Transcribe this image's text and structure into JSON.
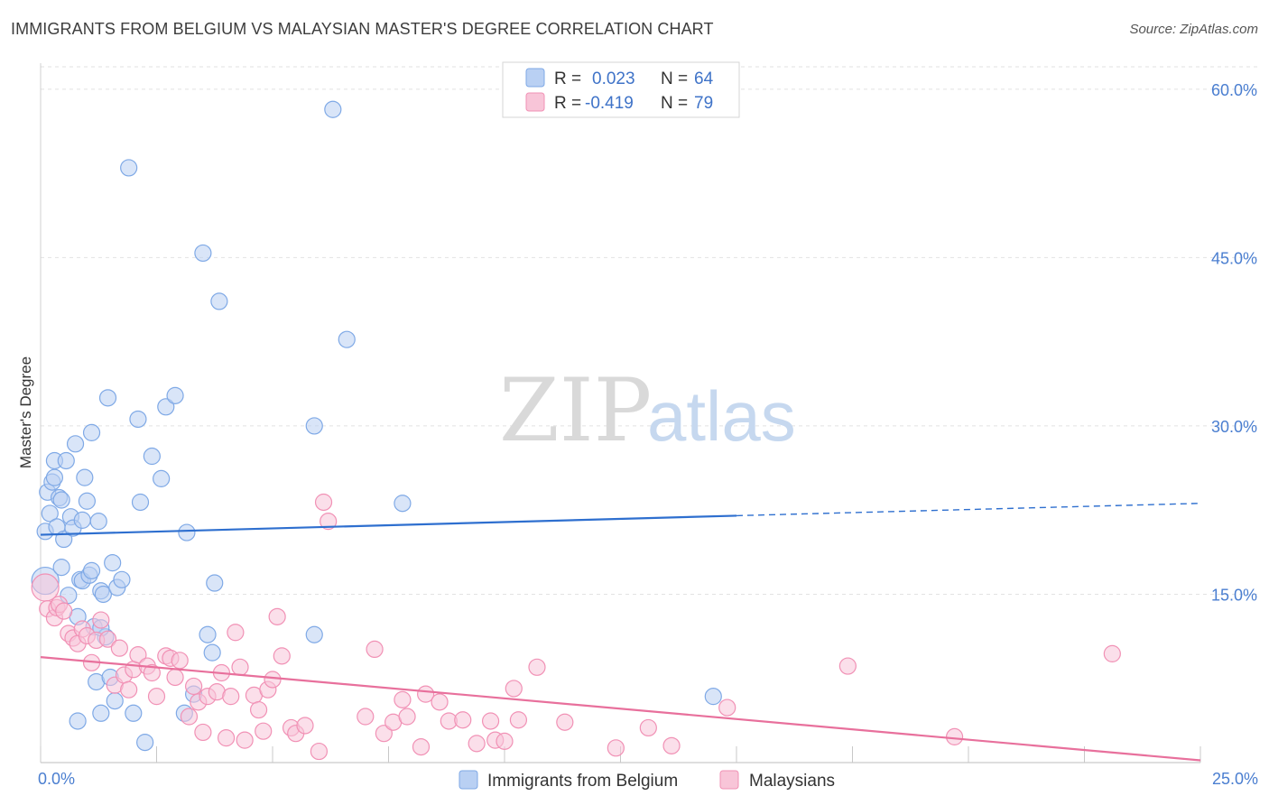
{
  "title": "IMMIGRANTS FROM BELGIUM VS MALAYSIAN MASTER'S DEGREE CORRELATION CHART",
  "source": "Source: ZipAtlas.com",
  "watermark": {
    "zip": "ZIP",
    "atlas": "atlas"
  },
  "chart_data": {
    "type": "scatter",
    "ylabel": "Master's Degree",
    "xlim": [
      0,
      25
    ],
    "ylim": [
      0,
      62
    ],
    "y_ticks": [
      {
        "value": 15,
        "label": "15.0%"
      },
      {
        "value": 30,
        "label": "30.0%"
      },
      {
        "value": 45,
        "label": "45.0%"
      },
      {
        "value": 60,
        "label": "60.0%"
      }
    ],
    "x_tick_labels": [
      {
        "value": 0,
        "label": "0.0%"
      },
      {
        "value": 25,
        "label": "25.0%"
      }
    ],
    "legend": [
      {
        "r_label": "R =",
        "r_value": "0.023",
        "n_label": "N =",
        "n_value": "64"
      },
      {
        "r_label": "R =",
        "r_value": "-0.419",
        "n_label": "N =",
        "n_value": "79"
      }
    ],
    "series": [
      {
        "name": "Immigrants from Belgium",
        "color": "#7fa9e6",
        "fill": "#b9d0f3",
        "trend_color": "#2e6fcf",
        "trend": {
          "x0": 0,
          "y0": 20.3,
          "x1": 15,
          "y1": 22.0,
          "x_dash_end": 25,
          "y_dash_end": 23.1
        },
        "points": [
          [
            0.1,
            16.2
          ],
          [
            0.1,
            20.6
          ],
          [
            0.15,
            24.1
          ],
          [
            0.2,
            22.2
          ],
          [
            0.25,
            25.0
          ],
          [
            0.3,
            26.9
          ],
          [
            0.3,
            25.4
          ],
          [
            0.35,
            21.0
          ],
          [
            0.4,
            23.6
          ],
          [
            0.45,
            17.4
          ],
          [
            0.45,
            23.4
          ],
          [
            0.5,
            19.9
          ],
          [
            0.55,
            26.9
          ],
          [
            0.6,
            14.9
          ],
          [
            0.65,
            21.9
          ],
          [
            0.7,
            20.9
          ],
          [
            0.75,
            28.4
          ],
          [
            0.8,
            13.0
          ],
          [
            0.8,
            3.7
          ],
          [
            0.85,
            16.3
          ],
          [
            0.9,
            21.6
          ],
          [
            0.9,
            16.2
          ],
          [
            0.95,
            25.4
          ],
          [
            1.0,
            23.3
          ],
          [
            1.05,
            16.7
          ],
          [
            1.1,
            17.1
          ],
          [
            1.1,
            29.4
          ],
          [
            1.15,
            12.1
          ],
          [
            1.2,
            7.2
          ],
          [
            1.25,
            21.5
          ],
          [
            1.3,
            4.4
          ],
          [
            1.3,
            15.3
          ],
          [
            1.35,
            15.0
          ],
          [
            1.4,
            11.2
          ],
          [
            1.45,
            32.5
          ],
          [
            1.5,
            7.6
          ],
          [
            1.55,
            17.8
          ],
          [
            1.6,
            5.5
          ],
          [
            1.65,
            15.6
          ],
          [
            1.75,
            16.3
          ],
          [
            1.9,
            53.0
          ],
          [
            2.0,
            4.4
          ],
          [
            2.1,
            30.6
          ],
          [
            2.15,
            23.2
          ],
          [
            2.25,
            1.8
          ],
          [
            2.4,
            27.3
          ],
          [
            2.6,
            25.3
          ],
          [
            2.7,
            31.7
          ],
          [
            2.9,
            32.7
          ],
          [
            3.1,
            4.4
          ],
          [
            3.15,
            20.5
          ],
          [
            3.3,
            6.1
          ],
          [
            3.5,
            45.4
          ],
          [
            3.6,
            11.4
          ],
          [
            3.7,
            9.8
          ],
          [
            3.75,
            16.0
          ],
          [
            3.85,
            41.1
          ],
          [
            5.9,
            11.4
          ],
          [
            5.9,
            30.0
          ],
          [
            6.3,
            58.2
          ],
          [
            6.6,
            37.7
          ],
          [
            7.8,
            23.1
          ],
          [
            14.5,
            5.9
          ],
          [
            1.3,
            12.0
          ]
        ]
      },
      {
        "name": "Malaysians",
        "color": "#f191b5",
        "fill": "#f8c5d8",
        "trend_color": "#e8709c",
        "trend": {
          "x0": 0,
          "y0": 9.4,
          "x1": 25,
          "y1": 0.2
        },
        "points": [
          [
            0.1,
            15.6
          ],
          [
            0.15,
            13.7
          ],
          [
            0.3,
            12.9
          ],
          [
            0.35,
            13.8
          ],
          [
            0.4,
            14.1
          ],
          [
            0.5,
            13.5
          ],
          [
            0.6,
            11.5
          ],
          [
            0.7,
            11.1
          ],
          [
            0.8,
            10.6
          ],
          [
            0.9,
            11.9
          ],
          [
            1.0,
            11.3
          ],
          [
            1.1,
            8.9
          ],
          [
            1.2,
            10.9
          ],
          [
            1.3,
            12.7
          ],
          [
            1.45,
            11.0
          ],
          [
            1.6,
            6.9
          ],
          [
            1.7,
            10.2
          ],
          [
            1.8,
            7.8
          ],
          [
            1.9,
            6.5
          ],
          [
            2.0,
            8.3
          ],
          [
            2.1,
            9.6
          ],
          [
            2.3,
            8.6
          ],
          [
            2.4,
            8.0
          ],
          [
            2.5,
            5.9
          ],
          [
            2.7,
            9.5
          ],
          [
            2.8,
            9.3
          ],
          [
            2.9,
            7.6
          ],
          [
            3.0,
            9.1
          ],
          [
            3.2,
            4.1
          ],
          [
            3.3,
            6.8
          ],
          [
            3.4,
            5.4
          ],
          [
            3.5,
            2.7
          ],
          [
            3.6,
            5.9
          ],
          [
            3.8,
            6.3
          ],
          [
            3.9,
            8.0
          ],
          [
            4.0,
            2.2
          ],
          [
            4.1,
            5.9
          ],
          [
            4.2,
            11.6
          ],
          [
            4.3,
            8.5
          ],
          [
            4.4,
            2.0
          ],
          [
            4.6,
            6.0
          ],
          [
            4.7,
            4.7
          ],
          [
            4.8,
            2.8
          ],
          [
            4.9,
            6.5
          ],
          [
            5.0,
            7.4
          ],
          [
            5.1,
            13.0
          ],
          [
            5.2,
            9.5
          ],
          [
            5.4,
            3.1
          ],
          [
            5.5,
            2.6
          ],
          [
            5.7,
            3.3
          ],
          [
            6.0,
            1.0
          ],
          [
            6.1,
            23.2
          ],
          [
            6.2,
            21.5
          ],
          [
            7.0,
            4.1
          ],
          [
            7.2,
            10.1
          ],
          [
            7.4,
            2.6
          ],
          [
            7.6,
            3.6
          ],
          [
            7.8,
            5.6
          ],
          [
            7.9,
            4.1
          ],
          [
            8.2,
            1.4
          ],
          [
            8.3,
            6.1
          ],
          [
            8.6,
            5.4
          ],
          [
            8.8,
            3.7
          ],
          [
            9.1,
            3.8
          ],
          [
            9.4,
            1.7
          ],
          [
            9.7,
            3.7
          ],
          [
            9.8,
            2.0
          ],
          [
            10.0,
            1.9
          ],
          [
            10.2,
            6.6
          ],
          [
            10.3,
            3.8
          ],
          [
            10.7,
            8.5
          ],
          [
            11.3,
            3.6
          ],
          [
            12.4,
            1.3
          ],
          [
            13.1,
            3.1
          ],
          [
            13.6,
            1.5
          ],
          [
            14.8,
            4.9
          ],
          [
            17.4,
            8.6
          ],
          [
            19.7,
            2.3
          ],
          [
            23.1,
            9.7
          ]
        ]
      }
    ]
  }
}
